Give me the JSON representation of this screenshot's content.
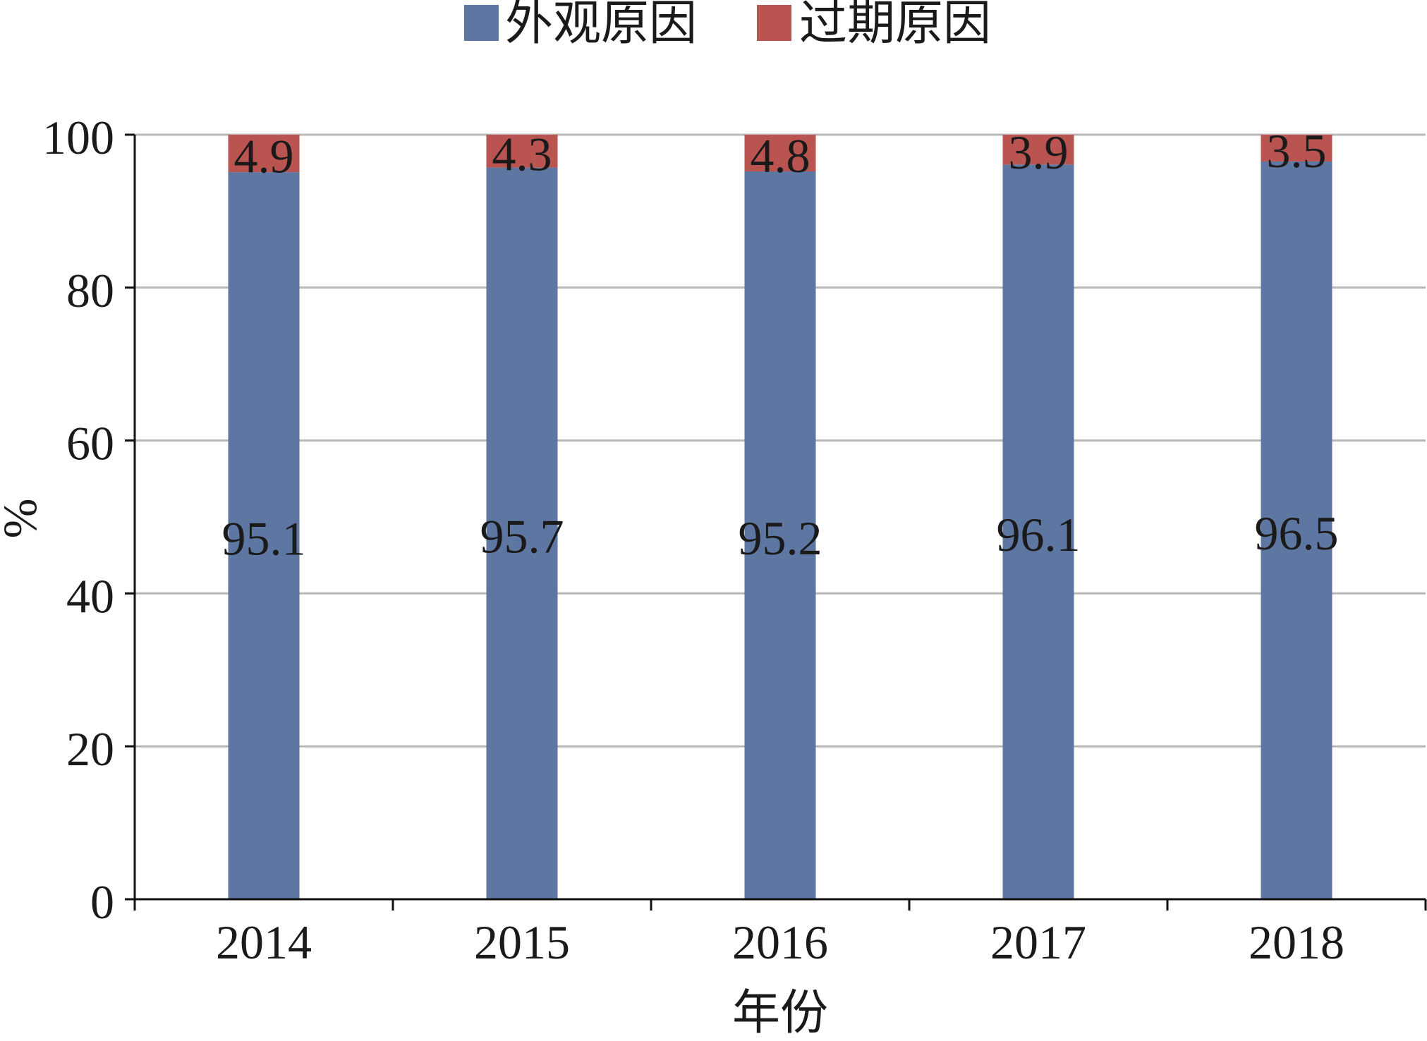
{
  "chart_data": {
    "type": "bar",
    "stacked": true,
    "categories": [
      "2014",
      "2015",
      "2016",
      "2017",
      "2018"
    ],
    "series": [
      {
        "name": "外观原因",
        "values": [
          95.1,
          95.7,
          95.2,
          96.1,
          96.5
        ],
        "color": "#5e76a2"
      },
      {
        "name": "过期原因",
        "values": [
          4.9,
          4.3,
          4.8,
          3.9,
          3.5
        ],
        "color": "#b95450"
      }
    ],
    "xlabel": "年份",
    "ylabel": "%",
    "ylim": [
      0,
      100
    ],
    "yticks": [
      0,
      20,
      40,
      60,
      80,
      100
    ],
    "grid": true,
    "legend": "top",
    "data_labels": true
  }
}
